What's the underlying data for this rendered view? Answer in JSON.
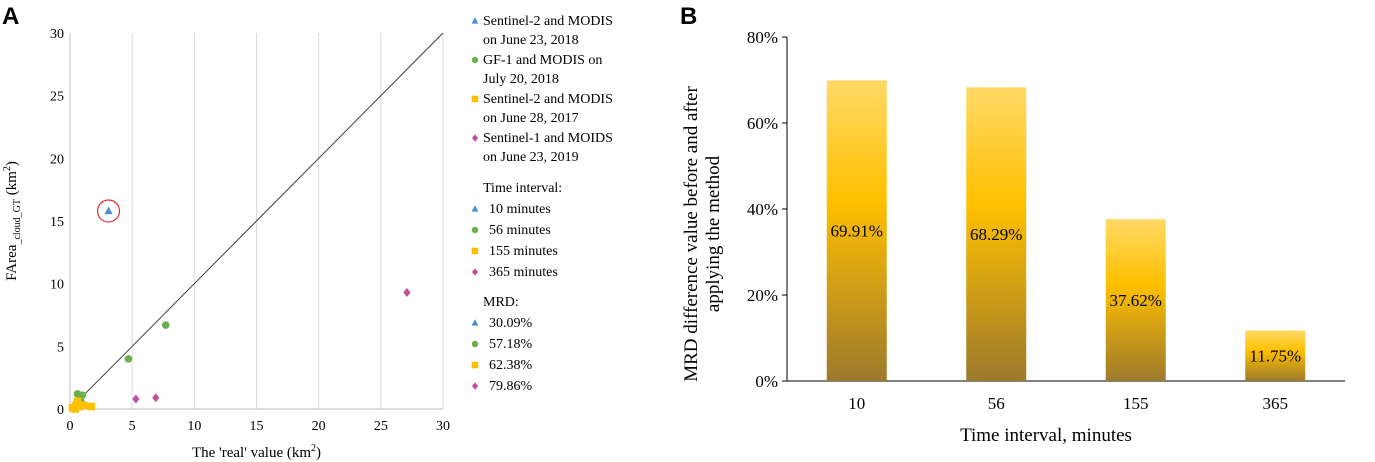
{
  "chart_data": [
    {
      "panel": "A",
      "type": "scatter",
      "xlabel": "The 'real' value (km",
      "xlabel_sup": "2",
      "xlabel_end": ")",
      "ylabel": "FArea",
      "ylabel_sub": "_cloud_GT",
      "ylabel_end": " (km",
      "ylabel_sup": "2",
      "ylabel_close": ")",
      "xlim": [
        0,
        30
      ],
      "ylim": [
        0,
        30
      ],
      "xticks": [
        "0",
        "5",
        "10",
        "15",
        "20",
        "25",
        "30"
      ],
      "yticks": [
        "0",
        "5",
        "10",
        "15",
        "20",
        "25",
        "30"
      ],
      "grid": "vertical",
      "reference_line": "y = x",
      "series": [
        {
          "name": "Sentinel-2 and MODIS on June 23, 2018",
          "name_lines": [
            "Sentinel-2 and MODIS",
            "on June 23, 2018"
          ],
          "marker": "triangle",
          "color": "#4a8fd0",
          "points": [
            [
              3.1,
              15.8
            ],
            [
              0.3,
              0.3
            ],
            [
              0.6,
              0.5
            ],
            [
              0.9,
              0.8
            ]
          ]
        },
        {
          "name": "GF-1 and MODIS on July 20, 2018",
          "name_lines": [
            "GF-1 and MODIS on",
            "July 20, 2018"
          ],
          "marker": "circle",
          "color": "#6ab04c",
          "points": [
            [
              7.7,
              6.7
            ],
            [
              4.7,
              4.0
            ],
            [
              0.6,
              1.2
            ],
            [
              1.0,
              1.1
            ],
            [
              0.4,
              0.2
            ],
            [
              0.8,
              0.6
            ]
          ]
        },
        {
          "name": "Sentinel-2 and MODIS on June 28, 2017",
          "name_lines": [
            "Sentinel-2 and MODIS",
            "on June 28, 2017"
          ],
          "marker": "square",
          "color": "#ffc000",
          "points": [
            [
              0.2,
              0.1
            ],
            [
              0.5,
              0.3
            ],
            [
              0.8,
              0.2
            ],
            [
              1.1,
              0.3
            ],
            [
              1.7,
              0.2
            ],
            [
              0.4,
              0.0
            ],
            [
              0.6,
              0.6
            ]
          ]
        },
        {
          "name": "Sentinel-1 and MOIDS on June 23, 2019",
          "name_lines": [
            "Sentinel-1 and MOIDS",
            "on June 23, 2019"
          ],
          "marker": "diamond",
          "color": "#c0509c",
          "points": [
            [
              27.1,
              9.3
            ],
            [
              6.9,
              0.9
            ],
            [
              5.3,
              0.8
            ]
          ]
        }
      ],
      "highlight": {
        "x": 3.1,
        "y": 15.8,
        "color": "#e03030"
      },
      "legend_groups": [
        {
          "title": "Time interval:",
          "items": [
            {
              "marker": "triangle",
              "color": "#4a8fd0",
              "label": "10 minutes"
            },
            {
              "marker": "circle",
              "color": "#6ab04c",
              "label": "56 minutes"
            },
            {
              "marker": "square",
              "color": "#ffc000",
              "label": "155 minutes"
            },
            {
              "marker": "diamond",
              "color": "#c0509c",
              "label": "365 minutes"
            }
          ]
        },
        {
          "title": "MRD:",
          "items": [
            {
              "marker": "triangle",
              "color": "#4a8fd0",
              "label": "30.09%"
            },
            {
              "marker": "circle",
              "color": "#6ab04c",
              "label": "57.18%"
            },
            {
              "marker": "square",
              "color": "#ffc000",
              "label": "62.38%"
            },
            {
              "marker": "diamond",
              "color": "#c0509c",
              "label": "79.86%"
            }
          ]
        }
      ]
    },
    {
      "panel": "B",
      "type": "bar",
      "categories": [
        "10",
        "56",
        "155",
        "365"
      ],
      "values": [
        69.91,
        68.29,
        37.62,
        11.75
      ],
      "data_labels": [
        "69.91%",
        "68.29%",
        "37.62%",
        "11.75%"
      ],
      "xlabel": "Time interval, minutes",
      "ylabel_lines": [
        "MRD difference value before and after",
        "applying the method"
      ],
      "ylim": [
        0,
        80
      ],
      "yticks": [
        "0%",
        "20%",
        "40%",
        "60%",
        "80%"
      ],
      "bar_gradient": [
        "#ffd966",
        "#ffc000",
        "#9c7a2c"
      ]
    }
  ]
}
